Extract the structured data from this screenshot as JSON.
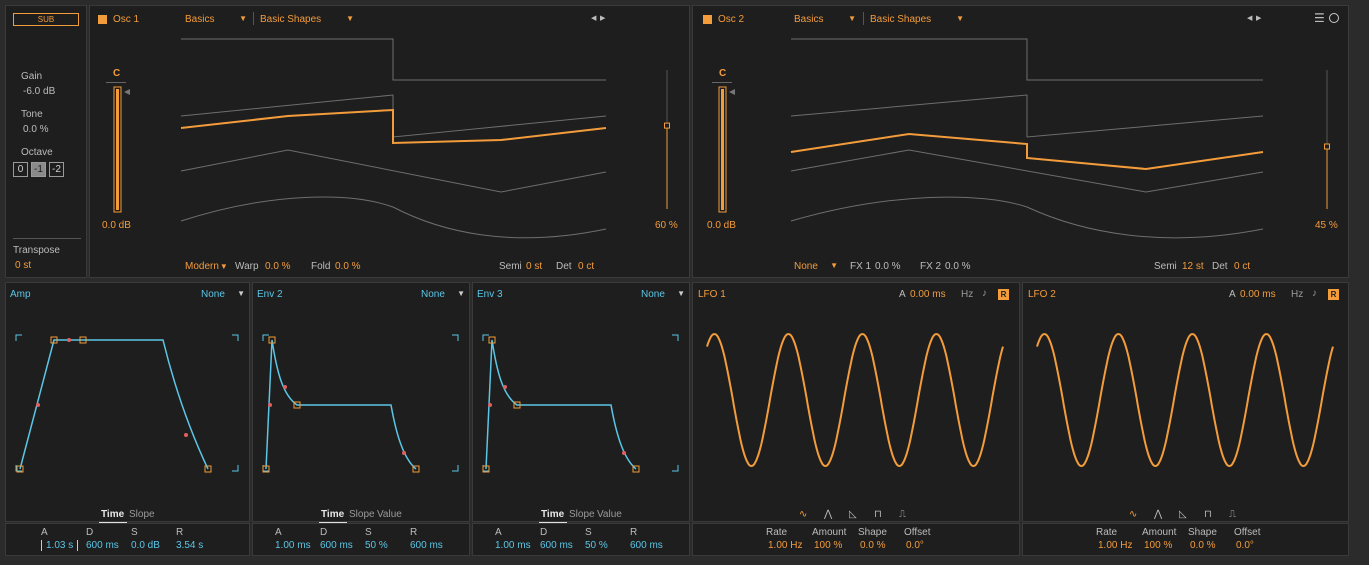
{
  "sub": {
    "button": "SUB",
    "gain_label": "Gain",
    "gain_value": "-6.0 dB",
    "tone_label": "Tone",
    "tone_value": "0.0 %",
    "octave_label": "Octave",
    "octave_options": [
      "0",
      "-1",
      "-2"
    ],
    "transpose_label": "Transpose",
    "transpose_value": "0 st"
  },
  "osc1": {
    "title": "Osc 1",
    "category": "Basics",
    "preset": "Basic Shapes",
    "note": "C",
    "level": "0.0 dB",
    "level_fraction": 1.0,
    "mix": "60 %",
    "mix_fraction": 0.6,
    "warp_mode": "Modern",
    "warp_label": "Warp",
    "warp_value": "0.0 %",
    "fold_label": "Fold",
    "fold_value": "0.0 %",
    "semi_label": "Semi",
    "semi_value": "0 st",
    "det_label": "Det",
    "det_value": "0 ct"
  },
  "osc2": {
    "title": "Osc 2",
    "category": "Basics",
    "preset": "Basic Shapes",
    "note": "C",
    "level": "0.0 dB",
    "level_fraction": 1.0,
    "mix": "45 %",
    "mix_fraction": 0.45,
    "fx_mode": "None",
    "fx1_label": "FX 1",
    "fx1_value": "0.0 %",
    "fx2_label": "FX 2",
    "fx2_value": "0.0 %",
    "semi_label": "Semi",
    "semi_value": "12 st",
    "det_label": "Det",
    "det_value": "0 ct"
  },
  "envs": [
    {
      "title": "Amp",
      "mod": "None",
      "tabs": [
        "Time",
        "Slope"
      ],
      "params": [
        {
          "label": "A",
          "value": "1.03 s"
        },
        {
          "label": "D",
          "value": "600 ms"
        },
        {
          "label": "S",
          "value": "0.0 dB"
        },
        {
          "label": "R",
          "value": "3.54 s"
        }
      ]
    },
    {
      "title": "Env 2",
      "mod": "None",
      "tabs": [
        "Time",
        "Slope",
        "Value"
      ],
      "params": [
        {
          "label": "A",
          "value": "1.00 ms"
        },
        {
          "label": "D",
          "value": "600 ms"
        },
        {
          "label": "S",
          "value": "50 %"
        },
        {
          "label": "R",
          "value": "600 ms"
        }
      ]
    },
    {
      "title": "Env 3",
      "mod": "None",
      "tabs": [
        "Time",
        "Slope",
        "Value"
      ],
      "params": [
        {
          "label": "A",
          "value": "1.00 ms"
        },
        {
          "label": "D",
          "value": "600 ms"
        },
        {
          "label": "S",
          "value": "50 %"
        },
        {
          "label": "R",
          "value": "600 ms"
        }
      ]
    }
  ],
  "lfos": [
    {
      "title": "LFO 1",
      "attack_label": "A",
      "attack_value": "0.00 ms",
      "unit": "Hz",
      "retrigger": "R",
      "params": [
        {
          "label": "Rate",
          "value": "1.00 Hz"
        },
        {
          "label": "Amount",
          "value": "100 %"
        },
        {
          "label": "Shape",
          "value": "0.0 %"
        },
        {
          "label": "Offset",
          "value": "0.0°"
        }
      ]
    },
    {
      "title": "LFO 2",
      "attack_label": "A",
      "attack_value": "0.00 ms",
      "unit": "Hz",
      "retrigger": "R",
      "params": [
        {
          "label": "Rate",
          "value": "1.00 Hz"
        },
        {
          "label": "Amount",
          "value": "100 %"
        },
        {
          "label": "Shape",
          "value": "0.0 %"
        },
        {
          "label": "Offset",
          "value": "0.0°"
        }
      ]
    }
  ],
  "colors": {
    "accent": "#f39c3b",
    "env": "#5bc6e6",
    "panel": "#1e1e1e",
    "background": "#2b2b2b"
  }
}
